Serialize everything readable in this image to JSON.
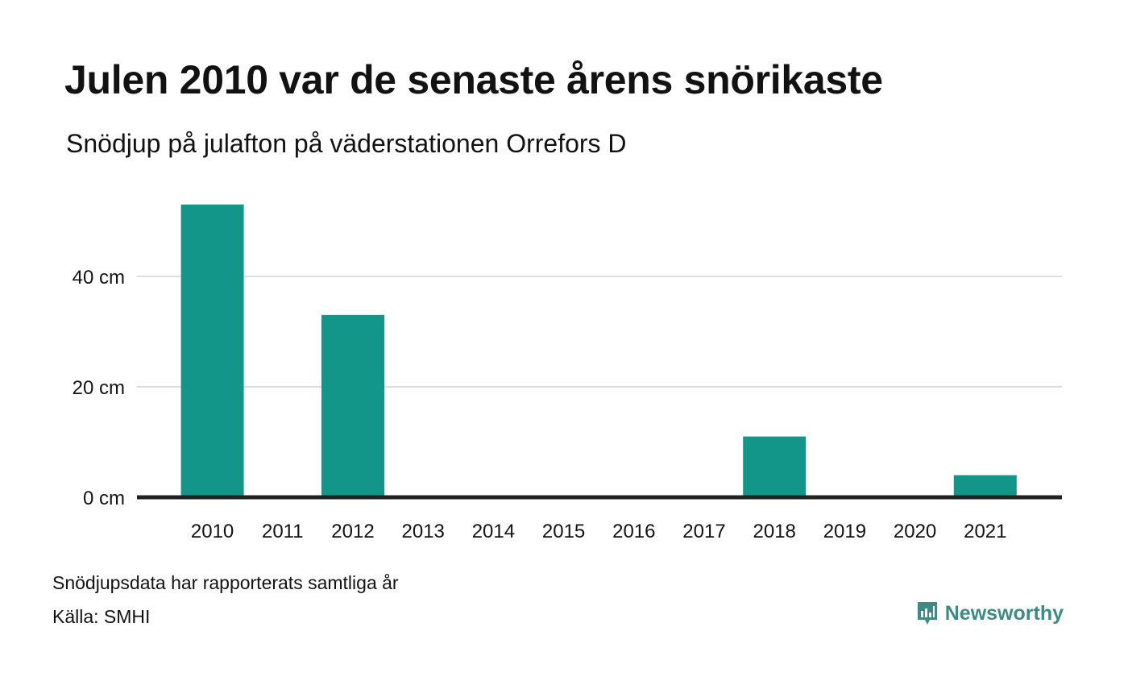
{
  "header": {
    "title": "Julen 2010 var de senaste årens snörikaste",
    "subtitle": "Snödjup på julafton på väderstationen Orrefors D"
  },
  "chart_data": {
    "type": "bar",
    "categories": [
      "2010",
      "2011",
      "2012",
      "2013",
      "2014",
      "2015",
      "2016",
      "2017",
      "2018",
      "2019",
      "2020",
      "2021"
    ],
    "values": [
      53,
      0,
      33,
      0,
      0,
      0,
      0,
      0,
      11,
      0,
      0,
      4
    ],
    "ylim": [
      0,
      55
    ],
    "yticks": [
      0,
      20,
      40
    ],
    "ytick_labels": [
      "0 cm",
      "20 cm",
      "40 cm"
    ],
    "grid": true,
    "bar_color": "#13968a",
    "axis_color": "#222222",
    "grid_color": "#dddddd"
  },
  "footer": {
    "note": "Snödjupsdata har rapporterats samtliga år",
    "source": "Källa: SMHI",
    "brand": "Newsworthy",
    "brand_icon": "newsworthy-logo-icon",
    "brand_color": "#3a8c84"
  }
}
